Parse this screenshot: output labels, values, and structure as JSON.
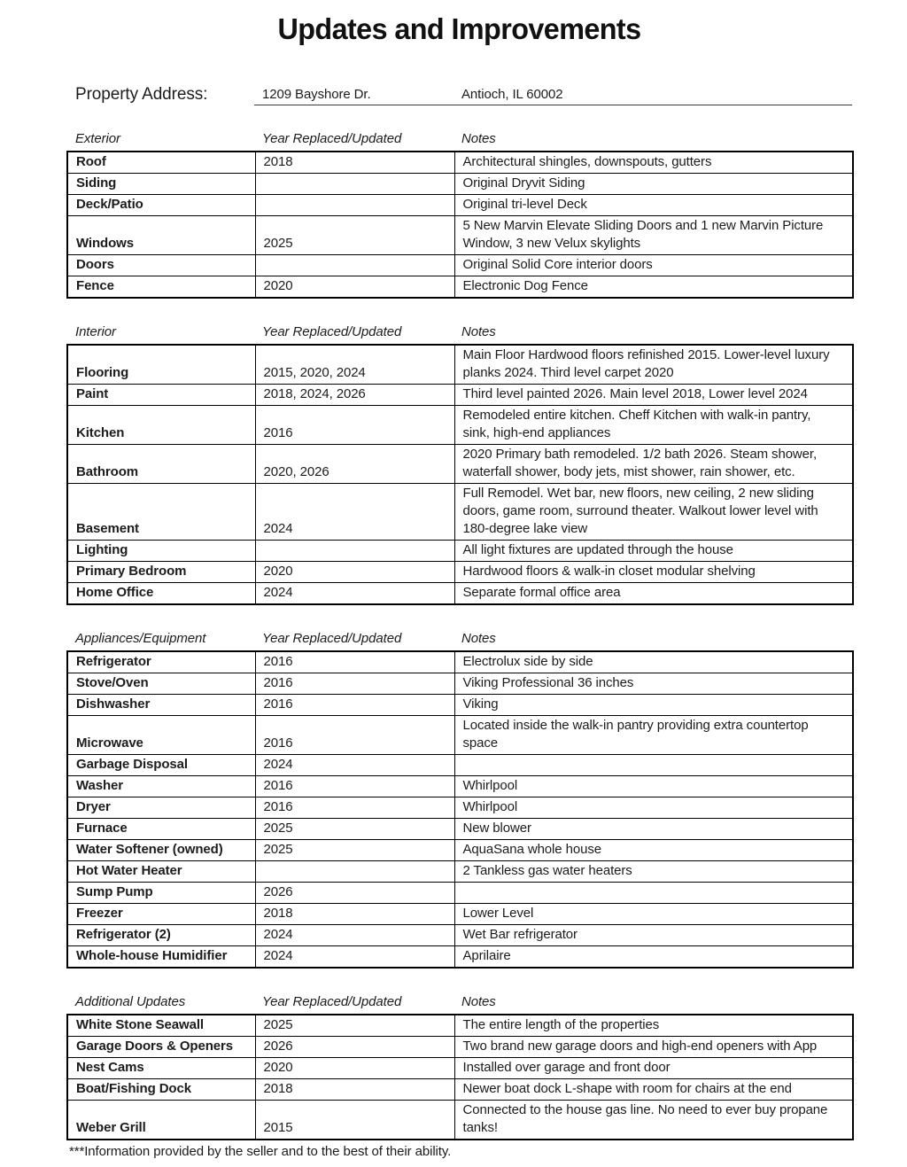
{
  "page": {
    "title": "Updates and Improvements",
    "property_address_label": "Property Address:",
    "address_street": "1209 Bayshore Dr.",
    "address_city": "Antioch, IL 60002",
    "footer": "***Information provided by the seller and to the best of their ability."
  },
  "columns": {
    "year": "Year Replaced/Updated",
    "notes": "Notes"
  },
  "sections": [
    {
      "name": "Exterior",
      "rows": [
        {
          "item": "Roof",
          "year": "2018",
          "notes": "Architectural shingles, downspouts, gutters"
        },
        {
          "item": "Siding",
          "year": "",
          "notes": "Original Dryvit Siding"
        },
        {
          "item": "Deck/Patio",
          "year": "",
          "notes": "Original tri-level Deck"
        },
        {
          "item": "Windows",
          "year": "2025",
          "notes": "5 New Marvin Elevate Sliding Doors and 1 new Marvin Picture Window, 3 new Velux skylights"
        },
        {
          "item": "Doors",
          "year": "",
          "notes": "Original Solid Core interior doors"
        },
        {
          "item": "Fence",
          "year": "2020",
          "notes": "Electronic Dog Fence"
        }
      ]
    },
    {
      "name": "Interior",
      "rows": [
        {
          "item": "Flooring",
          "year": "2015, 2020, 2024",
          "notes": "Main Floor Hardwood floors refinished 2015. Lower-level luxury planks 2024. Third level carpet 2020"
        },
        {
          "item": "Paint",
          "year": "2018, 2024, 2026",
          "notes": "Third level painted 2026. Main level 2018, Lower level 2024"
        },
        {
          "item": "Kitchen",
          "year": "2016",
          "notes": "Remodeled entire kitchen.  Cheff Kitchen with walk-in pantry, sink, high-end appliances"
        },
        {
          "item": "Bathroom",
          "year": "2020, 2026",
          "notes": "2020 Primary bath remodeled. 1/2 bath 2026. Steam shower, waterfall shower, body jets, mist shower, rain shower, etc."
        },
        {
          "item": "Basement",
          "year": "2024",
          "notes": "Full Remodel. Wet bar, new floors, new ceiling, 2 new sliding doors, game room, surround theater.  Walkout lower level with 180-degree lake view"
        },
        {
          "item": "Lighting",
          "year": "",
          "notes": "All light fixtures are updated through the house"
        },
        {
          "item": "Primary Bedroom",
          "year": "2020",
          "notes": "Hardwood floors & walk-in closet modular shelving"
        },
        {
          "item": "Home Office",
          "year": "2024",
          "notes": "Separate formal office area"
        }
      ]
    },
    {
      "name": "Appliances/Equipment",
      "rows": [
        {
          "item": "Refrigerator",
          "year": "2016",
          "notes": "Electrolux side by side"
        },
        {
          "item": "Stove/Oven",
          "year": "2016",
          "notes": "Viking Professional 36 inches"
        },
        {
          "item": "Dishwasher",
          "year": "2016",
          "notes": "Viking"
        },
        {
          "item": "Microwave",
          "year": "2016",
          "notes": "Located inside the walk-in pantry providing extra countertop space"
        },
        {
          "item": "Garbage Disposal",
          "year": "2024",
          "notes": ""
        },
        {
          "item": "Washer",
          "year": "2016",
          "notes": "Whirlpool"
        },
        {
          "item": "Dryer",
          "year": "2016",
          "notes": "Whirlpool"
        },
        {
          "item": "Furnace",
          "year": "2025",
          "notes": "New blower"
        },
        {
          "item": "Water Softener (owned)",
          "year": "2025",
          "notes": "AquaSana whole house"
        },
        {
          "item": "Hot Water Heater",
          "year": "",
          "notes": "2 Tankless gas water heaters"
        },
        {
          "item": "Sump Pump",
          "year": "2026",
          "notes": ""
        },
        {
          "item": "Freezer",
          "year": "2018",
          "notes": "Lower Level"
        },
        {
          "item": "Refrigerator (2)",
          "year": "2024",
          "notes": "Wet Bar refrigerator"
        },
        {
          "item": "Whole-house Humidifier",
          "year": "2024",
          "notes": "Aprilaire"
        }
      ]
    },
    {
      "name": "Additional Updates",
      "rows": [
        {
          "item": "White Stone Seawall",
          "year": "2025",
          "notes": "The entire length of the properties"
        },
        {
          "item": "Garage Doors & Openers",
          "year": "2026",
          "notes": "Two brand new garage doors and high-end openers with App"
        },
        {
          "item": "Nest Cams",
          "year": "2020",
          "notes": "Installed over garage and front door"
        },
        {
          "item": "Boat/Fishing Dock",
          "year": "2018",
          "notes": "Newer boat dock L-shape with room for chairs at the end"
        },
        {
          "item": "Weber Grill",
          "year": "2015",
          "notes": "Connected to the house gas line. No need to ever buy propane tanks!"
        }
      ]
    }
  ]
}
